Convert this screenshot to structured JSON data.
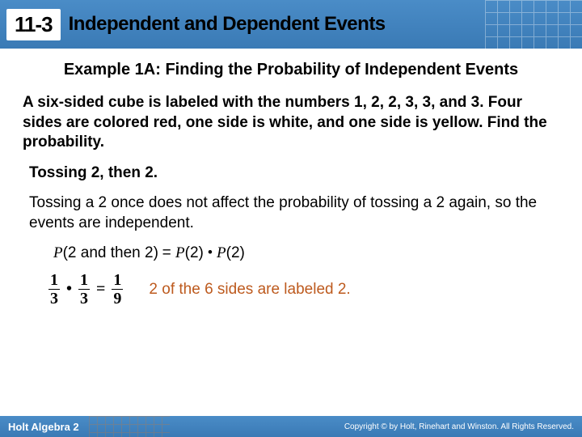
{
  "header": {
    "section_number": "11-3",
    "title": "Independent and Dependent Events",
    "background_color": "#4a8cc7"
  },
  "example": {
    "title": "Example 1A: Finding the Probability of Independent Events",
    "problem": "A six-sided cube is labeled with the numbers 1, 2, 2, 3, 3, and 3. Four sides are colored red, one side is white, and one side is yellow. Find the probability.",
    "subproblem": "Tossing 2, then 2.",
    "explanation": "Tossing a 2 once does not affect the probability of tossing a 2 again, so the events are independent.",
    "formula_lhs": "P",
    "formula_lhs_arg": "(2 and then 2)",
    "formula_rhs1": "P",
    "formula_rhs1_arg": "(2)",
    "formula_rhs2": "P",
    "formula_rhs2_arg": "(2)",
    "fractions": {
      "f1_num": "1",
      "f1_den": "3",
      "f2_num": "1",
      "f2_den": "3",
      "res_num": "1",
      "res_den": "9"
    },
    "note": "2 of the 6 sides are labeled 2.",
    "note_color": "#bd5a1e"
  },
  "footer": {
    "left": "Holt Algebra 2",
    "right": "Copyright © by Holt, Rinehart and Winston. All Rights Reserved."
  }
}
